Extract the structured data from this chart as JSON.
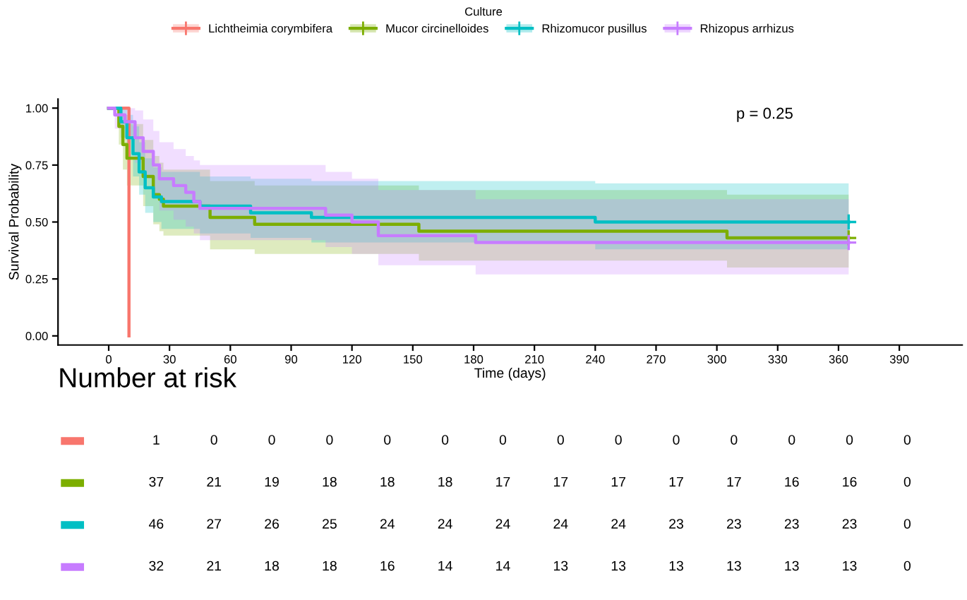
{
  "chart_data": [
    {
      "type": "step",
      "xlabel": "Time (days)",
      "ylabel": "Survival Probability",
      "legend_title": "Culture",
      "legend": "top",
      "grid": false,
      "line_style": "solid",
      "xlim": [
        -25,
        421
      ],
      "xticks": [
        0,
        30,
        60,
        90,
        120,
        150,
        180,
        210,
        240,
        270,
        300,
        330,
        360,
        390
      ],
      "ylim": [
        -0.04,
        1.04
      ],
      "yticks": [
        {
          "value": 0,
          "label": "0.00"
        },
        {
          "value": 0.25,
          "label": "0.25"
        },
        {
          "value": 0.5,
          "label": "0.50"
        },
        {
          "value": 0.75,
          "label": "0.75"
        },
        {
          "value": 1,
          "label": "1.00"
        }
      ],
      "annotations": [
        "p = 0.25"
      ],
      "series": [
        {
          "name": "Lichtheimia corymbifera",
          "color": "#f8766d",
          "x": [
            0,
            10
          ],
          "values": [
            1,
            0
          ]
        },
        {
          "name": "Mucor circinelloides",
          "color": "#7cae00",
          "x": [
            0,
            5,
            7,
            9,
            17,
            22,
            25,
            27,
            50,
            72,
            153,
            305,
            365
          ],
          "values": [
            1,
            0.92,
            0.84,
            0.78,
            0.7,
            0.62,
            0.6,
            0.57,
            0.52,
            0.49,
            0.46,
            0.43,
            0.43
          ],
          "lower": [
            1,
            0.84,
            0.73,
            0.66,
            0.57,
            0.49,
            0.46,
            0.44,
            0.38,
            0.36,
            0.33,
            0.3,
            0.3
          ],
          "upper": [
            1,
            1,
            0.97,
            0.93,
            0.86,
            0.79,
            0.76,
            0.73,
            0.68,
            0.66,
            0.64,
            0.62,
            0.62
          ]
        },
        {
          "name": "Rhizomucor pusillus",
          "color": "#00bfc4",
          "x": [
            0,
            5,
            6,
            9,
            12,
            15,
            18,
            22,
            26,
            45,
            70,
            100,
            240,
            365
          ],
          "values": [
            1,
            1,
            0.94,
            0.87,
            0.8,
            0.72,
            0.65,
            0.61,
            0.59,
            0.57,
            0.54,
            0.52,
            0.5,
            0.5
          ],
          "lower": [
            1,
            1,
            0.87,
            0.78,
            0.7,
            0.62,
            0.54,
            0.5,
            0.47,
            0.45,
            0.43,
            0.41,
            0.38,
            0.38
          ],
          "upper": [
            1,
            1,
            1,
            0.97,
            0.92,
            0.85,
            0.78,
            0.74,
            0.72,
            0.7,
            0.69,
            0.68,
            0.67,
            0.67
          ]
        },
        {
          "name": "Rhizopus arrhizus",
          "color": "#c77cff",
          "x": [
            0,
            3,
            8,
            13,
            17,
            22,
            25,
            32,
            38,
            42,
            45,
            107,
            120,
            133,
            181,
            365
          ],
          "values": [
            1,
            0.97,
            0.94,
            0.87,
            0.81,
            0.75,
            0.69,
            0.66,
            0.63,
            0.59,
            0.56,
            0.53,
            0.5,
            0.44,
            0.41,
            0.41
          ],
          "lower": [
            1,
            0.91,
            0.86,
            0.76,
            0.69,
            0.62,
            0.55,
            0.51,
            0.48,
            0.45,
            0.42,
            0.39,
            0.36,
            0.31,
            0.27,
            0.27
          ],
          "upper": [
            1,
            1,
            1,
            0.99,
            0.95,
            0.9,
            0.85,
            0.82,
            0.79,
            0.77,
            0.75,
            0.72,
            0.69,
            0.64,
            0.6,
            0.6
          ]
        },
        {
          "type": "scatter",
          "marker": "cross",
          "x": [
            365,
            365,
            365
          ],
          "values": [
            0.43,
            0.5,
            0.41
          ],
          "colors": [
            "#7cae00",
            "#00bfc4",
            "#c77cff"
          ]
        }
      ]
    },
    {
      "type": "heatmap",
      "title": "Number at risk",
      "data_labels": true,
      "colors": [
        "#f8766d",
        "#7cae00",
        "#00bfc4",
        "#c77cff"
      ],
      "categories": [
        null,
        null,
        null,
        null,
        null,
        null,
        null,
        null,
        null,
        null,
        null,
        null,
        null,
        null
      ],
      "y_categories": [
        null,
        null,
        null,
        null
      ],
      "cells": [
        [
          1,
          0,
          0,
          0,
          0,
          0,
          0,
          0,
          0,
          0,
          0,
          0,
          0,
          0
        ],
        [
          37,
          21,
          19,
          18,
          18,
          18,
          17,
          17,
          17,
          17,
          17,
          16,
          16,
          0
        ],
        [
          46,
          27,
          26,
          25,
          24,
          24,
          24,
          24,
          24,
          23,
          23,
          23,
          23,
          0
        ],
        [
          32,
          21,
          18,
          18,
          16,
          14,
          14,
          13,
          13,
          13,
          13,
          13,
          13,
          0
        ]
      ]
    }
  ]
}
